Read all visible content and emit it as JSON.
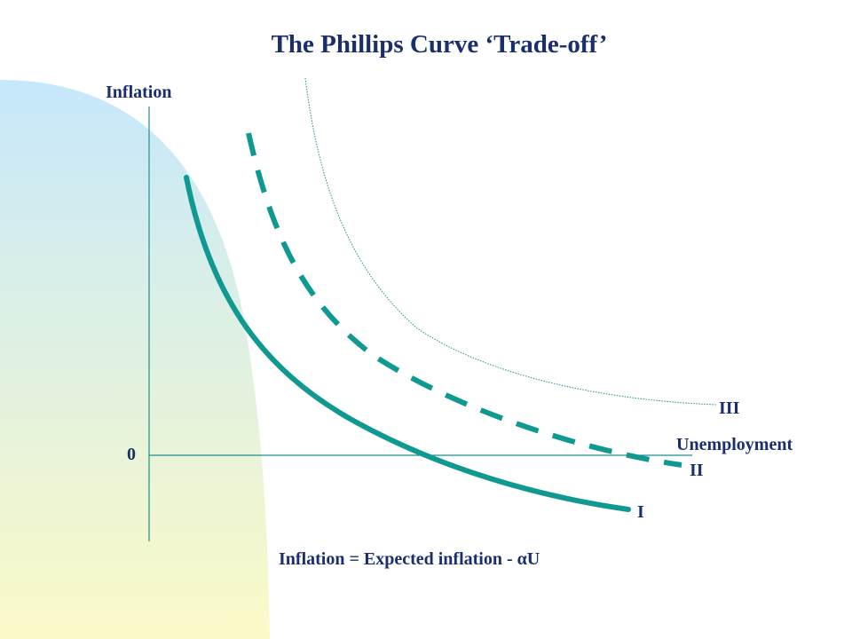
{
  "slide": {
    "title": "The Phillips Curve ‘Trade-off’",
    "equation": "Inflation = Expected inflation - αU"
  },
  "axes": {
    "y_label": "Inflation",
    "x_label": "Unemployment",
    "origin_label": "0"
  },
  "curves": [
    {
      "id": "I",
      "label": "I",
      "style": "solid-thick"
    },
    {
      "id": "II",
      "label": "II",
      "style": "dashed-thick"
    },
    {
      "id": "III",
      "label": "III",
      "style": "dotted-thin"
    }
  ],
  "colors": {
    "text": "#1a2f6b",
    "curve": "#0f9990",
    "axis": "#1f8e8e",
    "background_gradient_top": "#c6e8fb",
    "background_gradient_bottom": "#fbfac7"
  }
}
